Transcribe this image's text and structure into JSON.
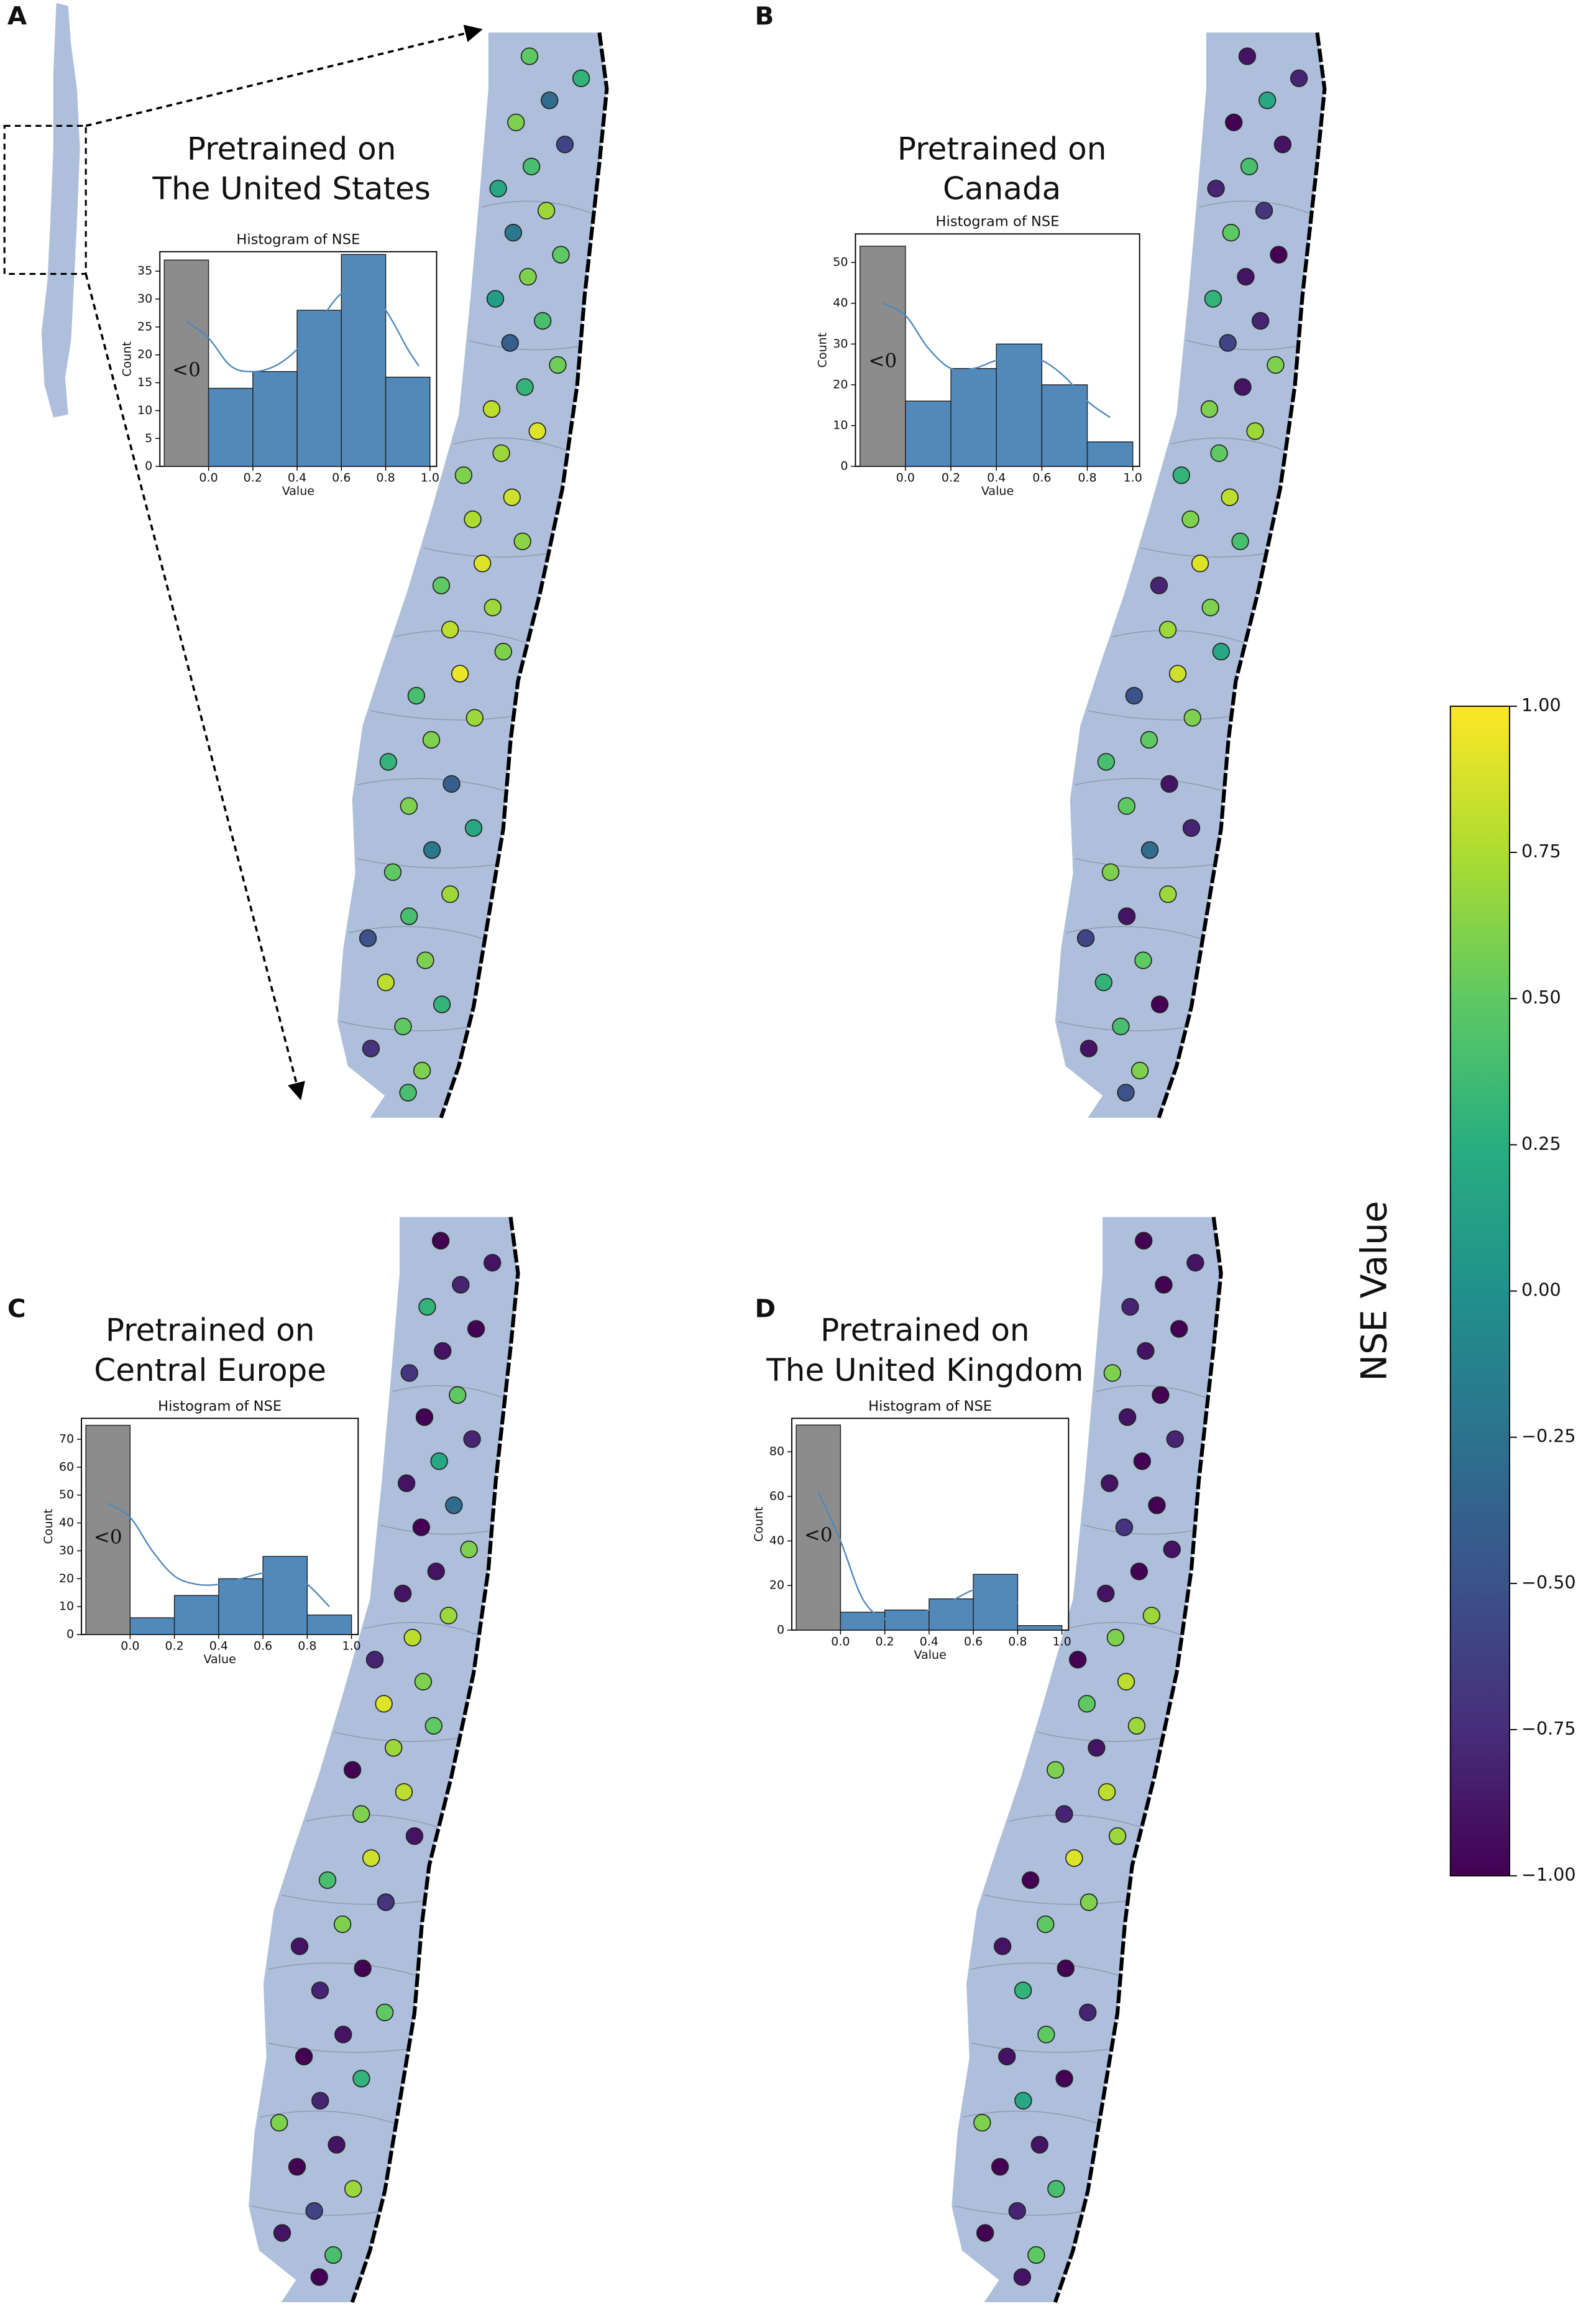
{
  "chart_data": [
    {
      "type": "panel",
      "label": "A",
      "title": [
        "Pretrained on",
        "The United States"
      ],
      "map": {
        "type": "scatter",
        "colormap": "viridis",
        "values": [
          0.5,
          0.3,
          -0.3,
          0.6,
          -0.6,
          0.4,
          0.2,
          0.7,
          -0.2,
          0.5,
          0.6,
          0.1,
          0.4,
          -0.4,
          0.55,
          0.3,
          0.8,
          0.9,
          0.7,
          0.6,
          0.85,
          0.75,
          0.65,
          0.9,
          0.5,
          0.7,
          0.8,
          0.6,
          0.95,
          0.4,
          0.7,
          0.6,
          0.3,
          -0.4,
          0.6,
          0.2,
          -0.2,
          0.5,
          0.7,
          0.4,
          -0.5,
          0.6,
          0.8,
          0.3,
          0.5,
          -0.7,
          0.6,
          0.4
        ]
      },
      "histogram": {
        "type": "histogram",
        "title": "Histogram of NSE",
        "xlabel": "Value",
        "ylabel": "Count",
        "bins": [
          -0.2,
          0,
          0.2,
          0.4,
          0.6,
          0.8,
          1.0
        ],
        "values": [
          37,
          14,
          17,
          28,
          38,
          16
        ],
        "negative_label": "<0",
        "negative_color": "#8c8c8c",
        "color": "#5089ba",
        "kde": {
          "x": [
            -0.1,
            0,
            0.1,
            0.2,
            0.3,
            0.4,
            0.5,
            0.6,
            0.7,
            0.8,
            0.9,
            0.95
          ],
          "y": [
            26,
            23,
            18,
            17,
            18,
            21,
            26,
            31,
            32,
            28,
            21,
            18
          ]
        },
        "xlim": [
          -0.22,
          1.03
        ],
        "ylim": [
          0,
          38.5
        ],
        "xticks": [
          {
            "value": 0,
            "label": "0.0"
          },
          {
            "value": 0.2,
            "label": "0.2"
          },
          {
            "value": 0.4,
            "label": "0.4"
          },
          {
            "value": 0.6,
            "label": "0.6"
          },
          {
            "value": 0.8,
            "label": "0.8"
          },
          {
            "value": 1,
            "label": "1.0"
          }
        ],
        "yticks": [
          0,
          5,
          10,
          15,
          20,
          25,
          30,
          35
        ]
      }
    },
    {
      "type": "panel",
      "label": "B",
      "title": [
        "Pretrained on",
        "Canada"
      ],
      "map": {
        "type": "scatter",
        "colormap": "viridis",
        "values": [
          -0.9,
          -0.8,
          0.2,
          -1,
          -0.9,
          0.4,
          -0.8,
          -0.7,
          0.5,
          -1,
          -0.9,
          0.3,
          -0.8,
          -0.6,
          0.6,
          -0.9,
          0.6,
          0.7,
          0.5,
          0.3,
          0.8,
          0.6,
          0.4,
          0.9,
          -0.8,
          0.6,
          0.7,
          0.2,
          0.85,
          -0.5,
          0.6,
          0.5,
          0.4,
          -0.9,
          0.5,
          -0.8,
          -0.3,
          0.6,
          0.7,
          -0.9,
          -0.6,
          0.5,
          0.3,
          -1,
          0.4,
          -0.9,
          0.6,
          -0.5
        ]
      },
      "histogram": {
        "type": "histogram",
        "title": "Histogram of NSE",
        "xlabel": "Value",
        "ylabel": "Count",
        "bins": [
          -0.2,
          0,
          0.2,
          0.4,
          0.6,
          0.8,
          1.0
        ],
        "values": [
          54,
          16,
          24,
          30,
          20,
          6
        ],
        "negative_label": "<0",
        "negative_color": "#8c8c8c",
        "color": "#5089ba",
        "kde": {
          "x": [
            -0.1,
            0,
            0.1,
            0.2,
            0.3,
            0.4,
            0.5,
            0.6,
            0.7,
            0.8,
            0.9
          ],
          "y": [
            40,
            37,
            29,
            24,
            24,
            26,
            27,
            26,
            22,
            16,
            12
          ]
        },
        "xlim": [
          -0.22,
          1.03
        ],
        "ylim": [
          0,
          57
        ],
        "xticks": [
          {
            "value": 0,
            "label": "0.0"
          },
          {
            "value": 0.2,
            "label": "0.2"
          },
          {
            "value": 0.4,
            "label": "0.4"
          },
          {
            "value": 0.6,
            "label": "0.6"
          },
          {
            "value": 0.8,
            "label": "0.8"
          },
          {
            "value": 1,
            "label": "1.0"
          }
        ],
        "yticks": [
          0,
          10,
          20,
          30,
          40,
          50
        ]
      }
    },
    {
      "type": "panel",
      "label": "C",
      "title": [
        "Pretrained on",
        "Central Europe"
      ],
      "map": {
        "type": "scatter",
        "colormap": "viridis",
        "values": [
          -1,
          -0.9,
          -0.8,
          0.3,
          -1,
          -0.9,
          -0.7,
          0.5,
          -1,
          -0.8,
          0.2,
          -0.9,
          -0.3,
          -1,
          0.6,
          -0.9,
          -0.9,
          0.7,
          0.8,
          -0.8,
          0.6,
          0.9,
          0.5,
          0.7,
          -1,
          0.8,
          0.6,
          -0.9,
          0.85,
          0.4,
          -0.7,
          0.6,
          -0.9,
          -1,
          -0.8,
          0.5,
          -0.9,
          -1,
          0.3,
          -0.8,
          0.6,
          -0.9,
          -1,
          0.7,
          -0.6,
          -0.9,
          0.4,
          -1
        ]
      },
      "histogram": {
        "type": "histogram",
        "title": "Histogram of NSE",
        "xlabel": "Value",
        "ylabel": "Count",
        "bins": [
          -0.2,
          0,
          0.2,
          0.4,
          0.6,
          0.8,
          1.0
        ],
        "values": [
          75,
          6,
          14,
          20,
          28,
          7
        ],
        "negative_label": "<0",
        "negative_color": "#8c8c8c",
        "color": "#5089ba",
        "kde": {
          "x": [
            -0.1,
            0,
            0.1,
            0.2,
            0.3,
            0.4,
            0.5,
            0.6,
            0.7,
            0.8,
            0.9
          ],
          "y": [
            47,
            42,
            30,
            21,
            18,
            18,
            20,
            22,
            22,
            18,
            10
          ]
        },
        "xlim": [
          -0.22,
          1.03
        ],
        "ylim": [
          0,
          77.5
        ],
        "xticks": [
          {
            "value": 0,
            "label": "0.0"
          },
          {
            "value": 0.2,
            "label": "0.2"
          },
          {
            "value": 0.4,
            "label": "0.4"
          },
          {
            "value": 0.6,
            "label": "0.6"
          },
          {
            "value": 0.8,
            "label": "0.8"
          },
          {
            "value": 1,
            "label": "1.0"
          }
        ],
        "yticks": [
          0,
          10,
          20,
          30,
          40,
          50,
          60,
          70
        ]
      }
    },
    {
      "type": "panel",
      "label": "D",
      "title": [
        "Pretrained on",
        "The United Kingdom"
      ],
      "map": {
        "type": "scatter",
        "colormap": "viridis",
        "values": [
          -1,
          -0.9,
          -1,
          -0.8,
          -1,
          -0.9,
          0.6,
          -1,
          -0.9,
          -0.8,
          -1,
          -0.9,
          -1,
          -0.7,
          -0.9,
          -1,
          -0.9,
          0.7,
          0.6,
          -1,
          0.8,
          0.5,
          0.7,
          -0.9,
          0.6,
          0.8,
          -0.8,
          0.7,
          0.9,
          -1,
          0.6,
          0.5,
          -0.9,
          -1,
          0.3,
          -0.8,
          0.5,
          -0.9,
          -1,
          0.2,
          0.6,
          -0.9,
          -1,
          0.4,
          -0.8,
          -1,
          0.5,
          -0.9
        ]
      },
      "histogram": {
        "type": "histogram",
        "title": "Histogram of NSE",
        "xlabel": "Value",
        "ylabel": "Count",
        "bins": [
          -0.2,
          0,
          0.2,
          0.4,
          0.6,
          0.8,
          1.0
        ],
        "values": [
          92,
          8,
          9,
          14,
          25,
          2
        ],
        "negative_label": "<0",
        "negative_color": "#8c8c8c",
        "color": "#5089ba",
        "kde": {
          "x": [
            -0.1,
            0,
            0.1,
            0.2,
            0.3,
            0.4,
            0.5,
            0.6,
            0.7,
            0.8
          ],
          "y": [
            62,
            40,
            14,
            5,
            6,
            9,
            13,
            18,
            19,
            12
          ]
        },
        "xlim": [
          -0.22,
          1.03
        ],
        "ylim": [
          0,
          95
        ],
        "xticks": [
          {
            "value": 0,
            "label": "0.0"
          },
          {
            "value": 0.2,
            "label": "0.2"
          },
          {
            "value": 0.4,
            "label": "0.4"
          },
          {
            "value": 0.6,
            "label": "0.6"
          },
          {
            "value": 0.8,
            "label": "0.8"
          },
          {
            "value": 1,
            "label": "1.0"
          }
        ],
        "yticks": [
          0,
          20,
          40,
          60,
          80
        ]
      }
    },
    {
      "type": "colorbar",
      "label": "NSE Value",
      "colormap": "viridis",
      "ylim": [
        -1,
        1
      ],
      "yticks": [
        {
          "value": -1,
          "label": "−1.00"
        },
        {
          "value": -0.75,
          "label": "−0.75"
        },
        {
          "value": -0.5,
          "label": "−0.50"
        },
        {
          "value": -0.25,
          "label": "−0.25"
        },
        {
          "value": 0,
          "label": "0.00"
        },
        {
          "value": 0.25,
          "label": "0.25"
        },
        {
          "value": 0.5,
          "label": "0.50"
        },
        {
          "value": 0.75,
          "label": "0.75"
        },
        {
          "value": 1,
          "label": "1.00"
        }
      ]
    }
  ]
}
